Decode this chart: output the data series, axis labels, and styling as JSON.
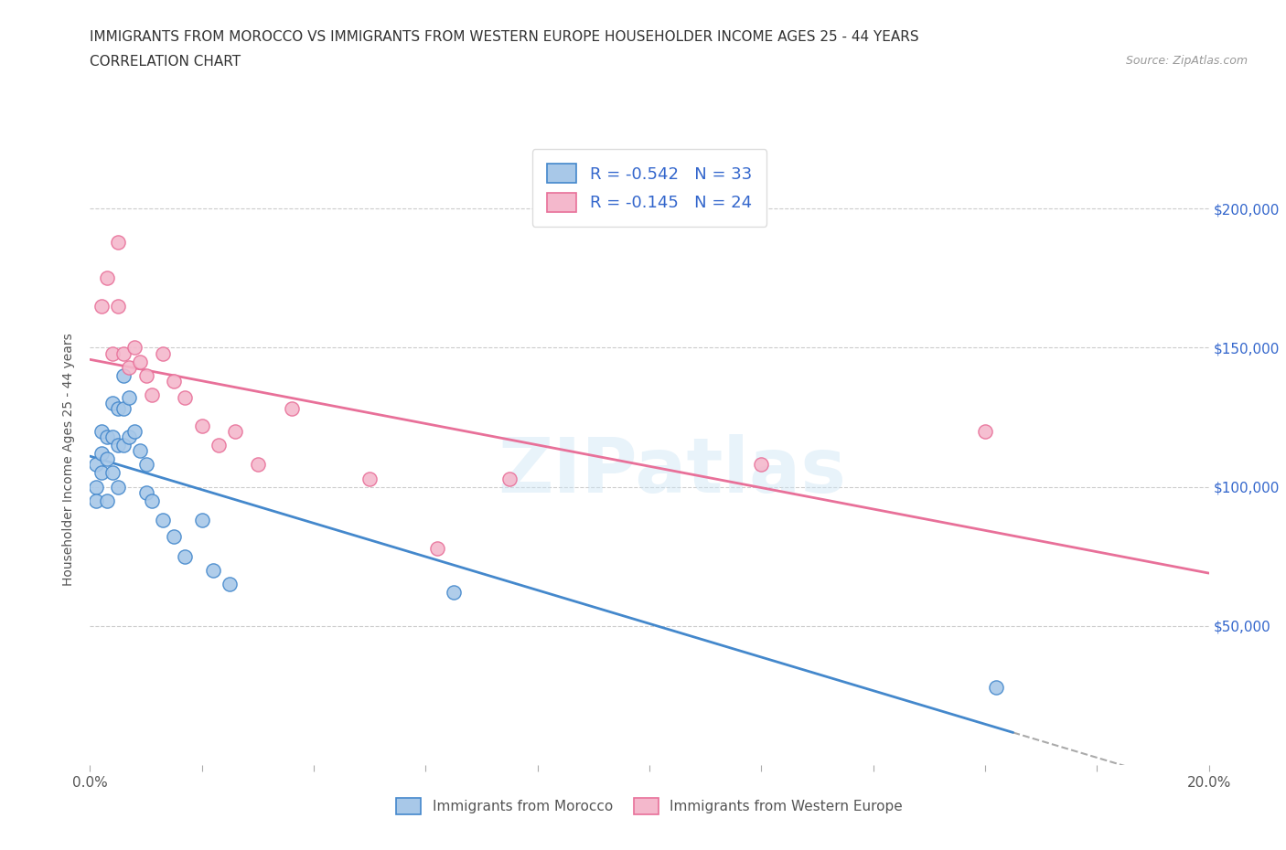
{
  "title_line1": "IMMIGRANTS FROM MOROCCO VS IMMIGRANTS FROM WESTERN EUROPE HOUSEHOLDER INCOME AGES 25 - 44 YEARS",
  "title_line2": "CORRELATION CHART",
  "source_text": "Source: ZipAtlas.com",
  "ylabel": "Householder Income Ages 25 - 44 years",
  "legend_label1": "Immigrants from Morocco",
  "legend_label2": "Immigrants from Western Europe",
  "r1": "-0.542",
  "n1": "33",
  "r2": "-0.145",
  "n2": "24",
  "color1": "#a8c8e8",
  "color2": "#f4b8cc",
  "line_color1": "#4488cc",
  "line_color2": "#e87099",
  "trend_line_color": "#aaaaaa",
  "background_color": "#ffffff",
  "xlim": [
    0.0,
    0.2
  ],
  "ylim": [
    0,
    220000
  ],
  "yticks": [
    0,
    50000,
    100000,
    150000,
    200000
  ],
  "ytick_labels_right": [
    "",
    "$50,000",
    "$100,000",
    "$150,000",
    "$200,000"
  ],
  "watermark": "ZIPatlas",
  "morocco_x": [
    0.001,
    0.001,
    0.001,
    0.002,
    0.002,
    0.002,
    0.003,
    0.003,
    0.003,
    0.004,
    0.004,
    0.004,
    0.005,
    0.005,
    0.005,
    0.006,
    0.006,
    0.006,
    0.007,
    0.007,
    0.008,
    0.009,
    0.01,
    0.01,
    0.011,
    0.013,
    0.015,
    0.017,
    0.02,
    0.022,
    0.025,
    0.065,
    0.162
  ],
  "morocco_y": [
    108000,
    100000,
    95000,
    120000,
    112000,
    105000,
    118000,
    110000,
    95000,
    130000,
    118000,
    105000,
    128000,
    115000,
    100000,
    140000,
    128000,
    115000,
    132000,
    118000,
    120000,
    113000,
    108000,
    98000,
    95000,
    88000,
    82000,
    75000,
    88000,
    70000,
    65000,
    62000,
    28000
  ],
  "western_x": [
    0.002,
    0.003,
    0.004,
    0.005,
    0.005,
    0.006,
    0.007,
    0.008,
    0.009,
    0.01,
    0.011,
    0.013,
    0.015,
    0.017,
    0.02,
    0.023,
    0.026,
    0.03,
    0.036,
    0.05,
    0.062,
    0.075,
    0.12,
    0.16
  ],
  "western_y": [
    165000,
    175000,
    148000,
    188000,
    165000,
    148000,
    143000,
    150000,
    145000,
    140000,
    133000,
    148000,
    138000,
    132000,
    122000,
    115000,
    120000,
    108000,
    128000,
    103000,
    78000,
    103000,
    108000,
    120000
  ]
}
